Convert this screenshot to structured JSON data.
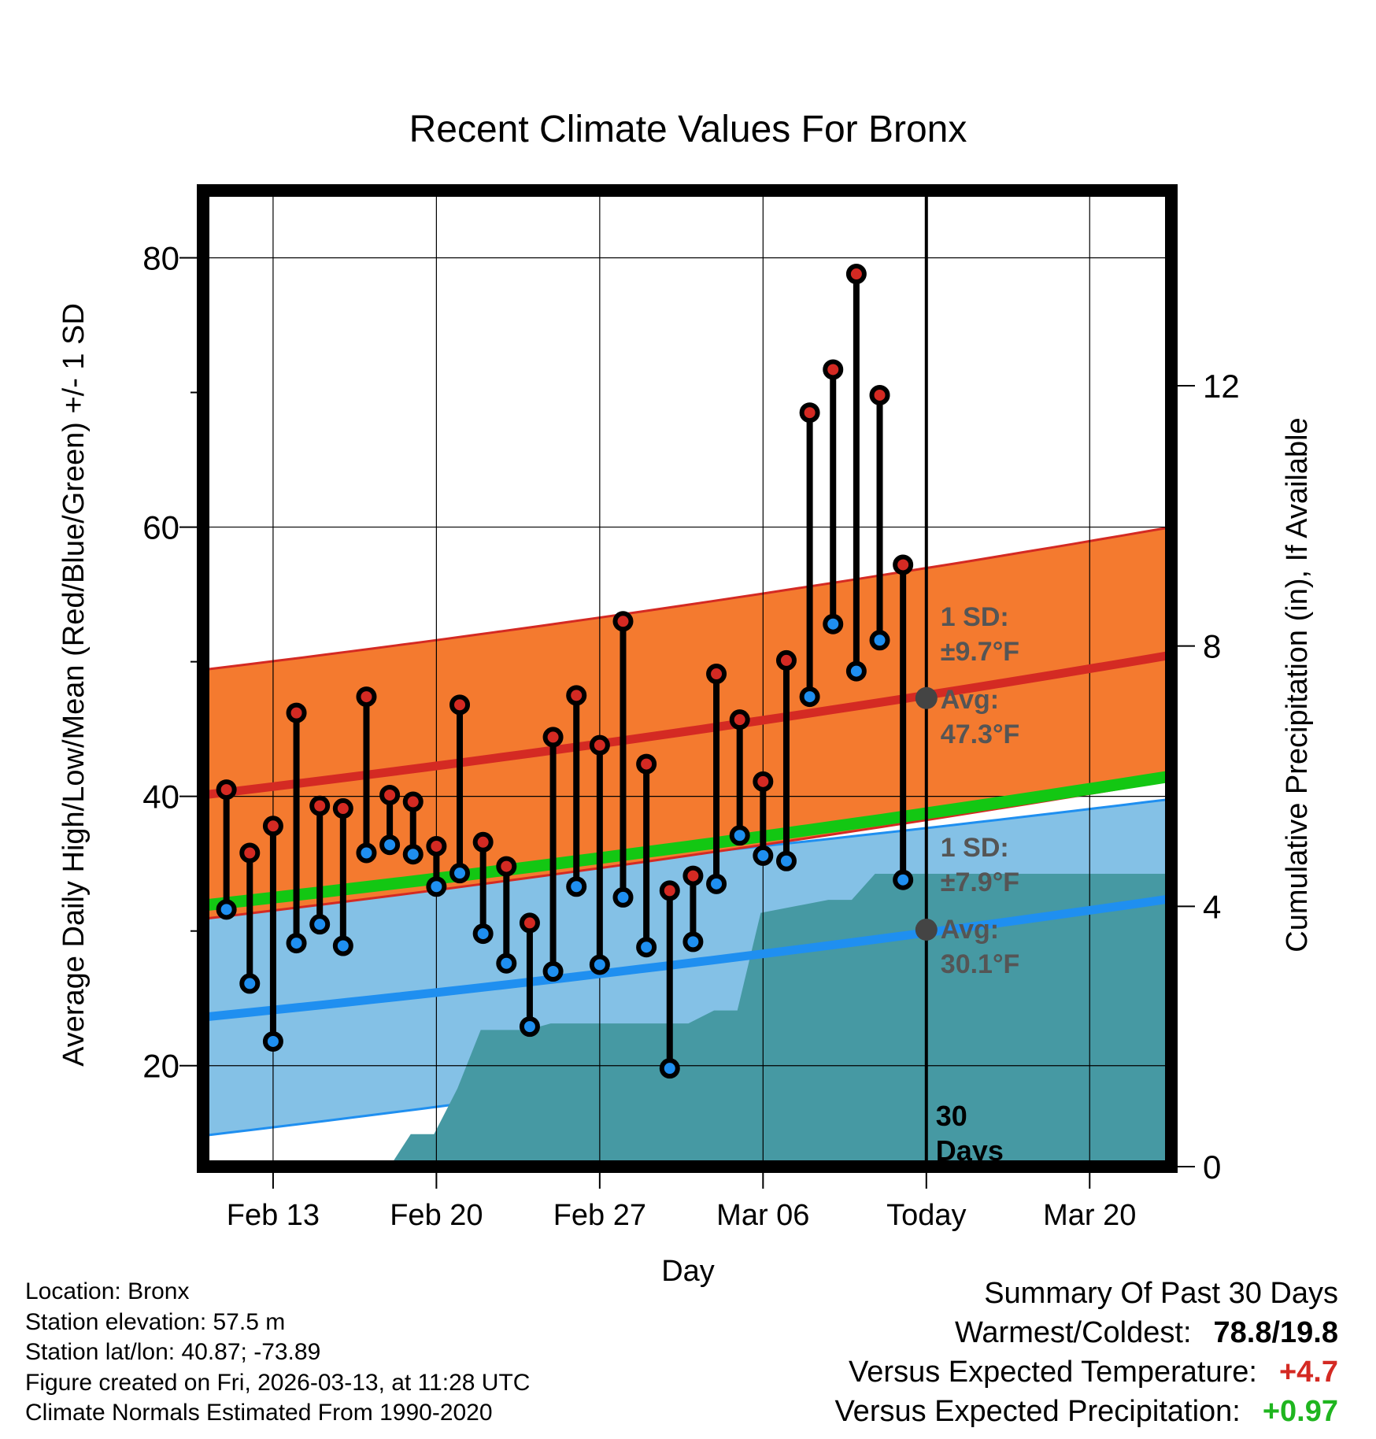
{
  "chart_data": {
    "type": "line",
    "title": "Recent Climate Values For Bronx",
    "xlabel": "Day",
    "ylabel": "Average Daily High/Low/Mean (Red/Blue/Green) +/- 1 SD",
    "y2label": "Cumulative Precipitation (in), If Available",
    "ylim": [
      12.5,
      85
    ],
    "y_ticks": [
      20,
      40,
      60,
      80
    ],
    "y2lim": [
      0,
      15
    ],
    "y2_ticks": [
      0,
      4,
      8,
      12
    ],
    "xlim": [
      -3.0,
      38.5
    ],
    "x_ticks": [
      {
        "day": 0,
        "label": "Feb 13"
      },
      {
        "day": 7,
        "label": "Feb 20"
      },
      {
        "day": 14,
        "label": "Feb 27"
      },
      {
        "day": 21,
        "label": "Mar 06"
      },
      {
        "day": 28,
        "label": "Today"
      },
      {
        "day": 35,
        "label": "Mar 20"
      }
    ],
    "today_day": 28,
    "window_label": "30 Days",
    "normal_high": {
      "start": 40.1,
      "end": 50.5,
      "sd_upper_start": 49.4,
      "sd_upper_end": 60.0,
      "sd_lower_start": 30.9,
      "sd_lower_end": 41.2
    },
    "normal_low": {
      "start": 23.6,
      "end": 32.4,
      "sd_upper_start": 32.3,
      "sd_upper_end": 39.8,
      "sd_lower_start": 14.8,
      "sd_lower_end": 25.1
    },
    "normal_mean": {
      "start": 31.9,
      "end": 41.5
    },
    "high_sd_label": [
      "1 SD:",
      "±9.7°F"
    ],
    "high_avg_label": [
      "Avg:",
      "47.3°F"
    ],
    "high_avg_value": 47.3,
    "low_sd_label": [
      "1 SD:",
      "±7.9°F"
    ],
    "low_avg_label": [
      "Avg:",
      "30.1°F"
    ],
    "low_avg_value": 30.1,
    "days": [
      -2,
      -1,
      0,
      1,
      2,
      3,
      4,
      5,
      6,
      7,
      8,
      9,
      10,
      11,
      12,
      13,
      14,
      15,
      16,
      17,
      18,
      19,
      20,
      21,
      22,
      23,
      24,
      25,
      26,
      27
    ],
    "highs": [
      40.5,
      35.8,
      37.8,
      46.2,
      39.3,
      39.1,
      47.4,
      40.1,
      39.6,
      36.3,
      46.8,
      36.6,
      34.8,
      30.6,
      44.4,
      47.5,
      43.8,
      53.0,
      42.4,
      33.0,
      34.1,
      49.1,
      45.7,
      41.1,
      50.1,
      68.5,
      71.7,
      78.8,
      69.8,
      57.2
    ],
    "lows": [
      31.6,
      26.1,
      21.8,
      29.1,
      30.5,
      28.9,
      35.8,
      36.4,
      35.7,
      33.3,
      34.3,
      29.8,
      27.6,
      22.9,
      27.0,
      33.3,
      27.5,
      32.5,
      28.8,
      19.8,
      29.2,
      33.5,
      37.1,
      35.6,
      35.2,
      47.4,
      52.8,
      49.3,
      51.6,
      33.8
    ],
    "precip_days": [
      5,
      5.9,
      6.9,
      7.9,
      8.9,
      10.9,
      11.9,
      13.9,
      14.9,
      17.8,
      18.9,
      19.9,
      20.9,
      23.8,
      24.8,
      25.8,
      38.5
    ],
    "precip_values": [
      0,
      0.5,
      0.5,
      1.2,
      2.1,
      2.1,
      2.2,
      2.2,
      2.2,
      2.2,
      2.4,
      2.4,
      3.9,
      4.1,
      4.1,
      4.5,
      4.5
    ],
    "legend_position": "none"
  },
  "info": {
    "location": "Location: Bronx",
    "elevation": "Station elevation: 57.5 m",
    "latlon": "Station lat/lon: 40.87; -73.89",
    "created": "Figure created on Fri, 2026-03-13, at 11:28 UTC",
    "normals": "Climate Normals Estimated From 1990-2020"
  },
  "summary": {
    "title": "Summary Of Past 30 Days",
    "warm_cold_label": "Warmest/Coldest:",
    "warm_cold_value": "78.8/19.8",
    "temp_label": "Versus Expected Temperature:",
    "temp_value": "+4.7",
    "precip_label": "Versus Expected Precipitation:",
    "precip_value": "+0.97"
  },
  "colors": {
    "high_band": "#f47a2f",
    "high_line": "#d42a23",
    "low_band": "#84c1e6",
    "low_line": "#1f8ff0",
    "mean_line": "#13c713",
    "precip": "#4699a3",
    "label_gray": "#555555",
    "temp_anomaly": "#d42a23",
    "precip_anomaly": "#1fb51f"
  }
}
